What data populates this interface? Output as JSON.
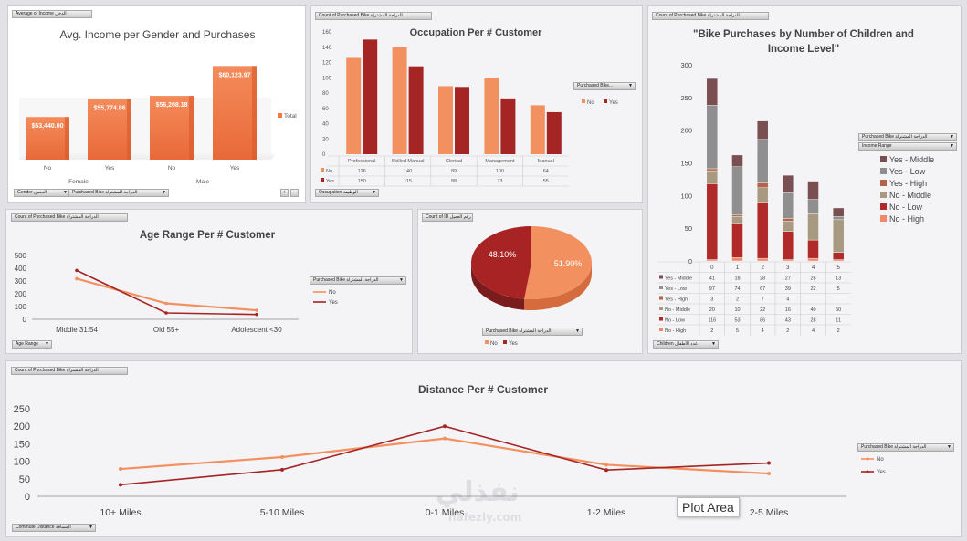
{
  "colors": {
    "no": "#f39060",
    "yes": "#a52525"
  },
  "panels": {
    "income": {
      "field": "Average of Income الدخل",
      "title": "Avg. Income per Gender and Purchases",
      "legend": "Total",
      "filters": [
        "Gender الجنس",
        "Purchased Bike الدراجة المشتراة"
      ]
    },
    "occupation": {
      "field": "Count of Purchased Bike الدراجة المشتراة",
      "title": "Occupation Per # Customer",
      "legend_title": "Purchased Bike...",
      "legend": [
        "No",
        "Yes"
      ],
      "filter": "Occupation الوظيفة"
    },
    "children": {
      "field": "Count of Purchased Bike الدراجة المشتراة",
      "title_line1": "\"Bike Purchases by Number of Children and",
      "title_line2": "Income Level\"",
      "legend_title": "Purchased Bike الدراجة المشتراة",
      "legend_title2": "Income Range",
      "filter": "Children عدد الأطفال"
    },
    "age": {
      "field": "Count of Purchased Bike الدراجة المشتراة",
      "title": "Age Range Per # Customer",
      "legend_title": "Purchased Bike الدراجة المشتراة",
      "legend": [
        "No",
        "Yes"
      ],
      "filter": "Age Range"
    },
    "pie": {
      "field": "Count of ID رقم العميل",
      "legend_title": "Purchased Bike الدراجة المشتراة",
      "legend": [
        "No",
        "Yes"
      ]
    },
    "distance": {
      "field": "Count of Purchased Bike الدراجة المشتراة",
      "title": "Distance Per # Customer",
      "legend_title": "Purchased Bike الدراجة المشتراة",
      "legend": [
        "No",
        "Yes"
      ],
      "filter": "Commute Distance المسافة"
    }
  },
  "tooltip": "Plot Area",
  "watermark": {
    "arabic": "نفذلي",
    "latin": "nafezly.com"
  },
  "chart_data": [
    {
      "type": "bar",
      "title": "Avg. Income per Gender and Purchases",
      "categories": [
        "No",
        "Yes",
        "No",
        "Yes"
      ],
      "groups": [
        "Female",
        "Male"
      ],
      "values": [
        53440,
        55774.86,
        56208.18,
        60123.97
      ],
      "labels": [
        "$53,440.00",
        "$55,774.86",
        "$56,208.18",
        "$60,123.97"
      ],
      "legend": "Total"
    },
    {
      "type": "bar",
      "title": "Occupation Per # Customer",
      "categories": [
        "Professional",
        "Skilled Manual",
        "Clerical",
        "Management",
        "Manual"
      ],
      "series": [
        {
          "name": "No",
          "values": [
            126,
            140,
            89,
            100,
            64
          ]
        },
        {
          "name": "Yes",
          "values": [
            150,
            115,
            88,
            73,
            55
          ]
        }
      ],
      "ylim": [
        0,
        160
      ],
      "yticks": [
        0,
        20,
        40,
        60,
        80,
        100,
        120,
        140,
        160
      ],
      "ytick_labels": [
        "0",
        "20",
        "40",
        "60",
        "80",
        "100",
        "120",
        "140",
        "160"
      ]
    },
    {
      "type": "bar",
      "stacked": true,
      "title": "\"Bike Purchases by Number of Children and Income Level\"",
      "categories": [
        "0",
        "1",
        "2",
        "3",
        "4",
        "5"
      ],
      "series": [
        {
          "name": "No - High",
          "color": "#f2876a",
          "values": [
            2,
            5,
            4,
            2,
            4,
            2
          ]
        },
        {
          "name": "No - Low",
          "color": "#b02a2a",
          "values": [
            116,
            53,
            86,
            43,
            28,
            11
          ]
        },
        {
          "name": "No - Middle",
          "color": "#a89a80",
          "values": [
            20,
            10,
            22,
            16,
            40,
            50
          ]
        },
        {
          "name": "Yes - High",
          "color": "#b5624a",
          "values": [
            3,
            2,
            7,
            4,
            null,
            null
          ]
        },
        {
          "name": "Yes - Low",
          "color": "#8f8f8f",
          "values": [
            97,
            74,
            67,
            39,
            22,
            5
          ]
        },
        {
          "name": "Yes - Middle",
          "color": "#7a4f52",
          "values": [
            41,
            18,
            28,
            27,
            28,
            13
          ]
        }
      ],
      "legend_order": [
        "Yes - Middle",
        "Yes - Low",
        "Yes - High",
        "No - Middle",
        "No - Low",
        "No - High"
      ],
      "table_labels": [
        "Yes - Middle",
        "Yes - Low",
        "Yes - High",
        "No - Middle",
        "No - Low",
        "No - High"
      ],
      "ylim": [
        0,
        300
      ],
      "yticks": [
        0,
        50,
        100,
        150,
        200,
        250,
        300
      ],
      "ytick_labels": [
        "0",
        "50",
        "100",
        "150",
        "200",
        "250",
        "300"
      ]
    },
    {
      "type": "line",
      "title": "Age Range Per # Customer",
      "categories": [
        "Middle 31:54",
        "Old 55+",
        "Adolescent <30"
      ],
      "series": [
        {
          "name": "No",
          "values": [
            318,
            125,
            71
          ]
        },
        {
          "name": "Yes",
          "values": [
            383,
            50,
            38
          ]
        }
      ],
      "ylim": [
        0,
        500
      ],
      "yticks": [
        0,
        100,
        200,
        300,
        400,
        500
      ],
      "ytick_labels": [
        "0",
        "100",
        "200",
        "300",
        "400",
        "500"
      ]
    },
    {
      "type": "pie",
      "series": [
        {
          "name": "No",
          "value": 51.9,
          "label": "51.90%"
        },
        {
          "name": "Yes",
          "value": 48.1,
          "label": "48.10%"
        }
      ]
    },
    {
      "type": "line",
      "title": "Distance Per # Customer",
      "categories": [
        "10+ Miles",
        "5-10 Miles",
        "0-1 Miles",
        "1-2 Miles",
        "2-5 Miles"
      ],
      "series": [
        {
          "name": "No",
          "values": [
            78,
            112,
            165,
            90,
            65
          ]
        },
        {
          "name": "Yes",
          "values": [
            33,
            76,
            200,
            75,
            95
          ]
        }
      ],
      "ylim": [
        0,
        250
      ],
      "yticks": [
        0,
        50,
        100,
        150,
        200,
        250
      ],
      "ytick_labels": [
        "0",
        "50",
        "100",
        "150",
        "200",
        "250"
      ]
    }
  ]
}
